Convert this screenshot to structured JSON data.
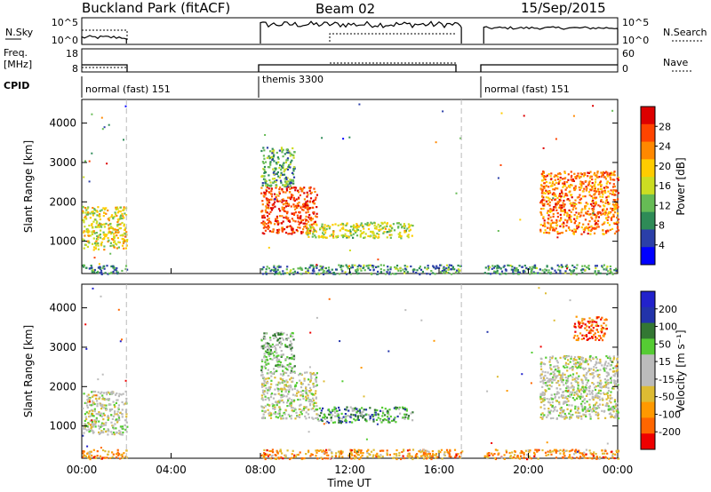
{
  "header": {
    "station": "Buckland Park (fitACF)",
    "beam": "Beam 02",
    "date": "15/Sep/2015"
  },
  "strips": {
    "nsky": {
      "label": "N.Sky",
      "yticks_left": [
        "10^5",
        "10^0"
      ],
      "right_label": "N.Search",
      "yticks_right": [
        "10^5",
        "10^0"
      ]
    },
    "freq": {
      "label_line1": "Freq.",
      "label_line2": "[MHz]",
      "yticks_left": [
        "18",
        "8"
      ],
      "right_label": "Nave",
      "yticks_right": [
        "60",
        "0"
      ]
    },
    "cpid": {
      "label": "CPID",
      "modes": [
        {
          "name": "normal (fast) 151",
          "start_h": 0.0,
          "end_h": 2.0
        },
        {
          "name": "themis 3300",
          "start_h": 8.0,
          "end_h": 17.0
        },
        {
          "name": "normal (fast) 151",
          "start_h": 18.0,
          "end_h": 24.0
        }
      ]
    }
  },
  "colors": {
    "power_scale": [
      "#0000ff",
      "#2b3fa8",
      "#2e8b57",
      "#66bb55",
      "#ccdd22",
      "#ffcc00",
      "#ff8800",
      "#ff4400",
      "#dd0000"
    ],
    "velocity_scale": [
      "#ee0000",
      "#ff6600",
      "#ff9900",
      "#ddbb33",
      "#bbbbbb",
      "#bbbbbb",
      "#55cc33",
      "#337733",
      "#2233aa",
      "#2222cc"
    ]
  },
  "chart_data": [
    {
      "type": "heatmap",
      "panel": "power",
      "xlabel": "",
      "ylabel": "Slant Range [km]",
      "xlim_hours": [
        0,
        24
      ],
      "ylim_km": [
        180,
        4600
      ],
      "yticks": [
        "1000",
        "2000",
        "3000",
        "4000"
      ],
      "colorbar_label": "Power [dB]",
      "colorbar_ticks": [
        "4",
        "8",
        "12",
        "16",
        "20",
        "24",
        "28"
      ],
      "regions": [
        {
          "t_start": 0.0,
          "t_end": 2.0,
          "r_low": 800,
          "r_high": 1900,
          "level": 0.55
        },
        {
          "t_start": 8.0,
          "t_end": 10.5,
          "r_low": 1200,
          "r_high": 2400,
          "level": 0.85
        },
        {
          "t_start": 8.0,
          "t_end": 9.5,
          "r_low": 2400,
          "r_high": 3400,
          "level": 0.35
        },
        {
          "t_start": 10.0,
          "t_end": 14.8,
          "r_low": 1100,
          "r_high": 1500,
          "level": 0.5
        },
        {
          "t_start": 20.5,
          "t_end": 24.0,
          "r_low": 1200,
          "r_high": 2800,
          "level": 0.75
        },
        {
          "t_start": 8.0,
          "t_end": 17.0,
          "r_low": 180,
          "r_high": 420,
          "level": 0.3
        },
        {
          "t_start": 18.0,
          "t_end": 24.0,
          "r_low": 180,
          "r_high": 420,
          "level": 0.3
        },
        {
          "t_start": 0.0,
          "t_end": 2.0,
          "r_low": 180,
          "r_high": 420,
          "level": 0.3
        }
      ]
    },
    {
      "type": "heatmap",
      "panel": "velocity",
      "xlabel": "Time UT",
      "ylabel": "Slant Range [km]",
      "xlim_hours": [
        0,
        24
      ],
      "ylim_km": [
        180,
        4600
      ],
      "yticks": [
        "1000",
        "2000",
        "3000",
        "4000"
      ],
      "xticks": [
        "00:00",
        "04:00",
        "08:00",
        "12:00",
        "16:00",
        "20:00",
        "00:00"
      ],
      "colorbar_label": "Velocity [m s⁻¹]",
      "colorbar_ticks": [
        "200",
        "100",
        "50",
        "15",
        "-15",
        "-50",
        "-100",
        "-200"
      ],
      "regions": [
        {
          "t_start": 0.0,
          "t_end": 2.0,
          "r_low": 800,
          "r_high": 1900,
          "level": 0.5
        },
        {
          "t_start": 8.0,
          "t_end": 10.5,
          "r_low": 1200,
          "r_high": 2400,
          "level": 0.5
        },
        {
          "t_start": 8.0,
          "t_end": 9.5,
          "r_low": 2400,
          "r_high": 3400,
          "level": 0.6
        },
        {
          "t_start": 10.5,
          "t_end": 14.8,
          "r_low": 1100,
          "r_high": 1500,
          "level": 0.7
        },
        {
          "t_start": 20.5,
          "t_end": 24.0,
          "r_low": 1200,
          "r_high": 2800,
          "level": 0.5
        },
        {
          "t_start": 22.0,
          "t_end": 23.5,
          "r_low": 3200,
          "r_high": 3800,
          "level": 0.15
        },
        {
          "t_start": 8.0,
          "t_end": 17.0,
          "r_low": 180,
          "r_high": 420,
          "level": 0.25
        },
        {
          "t_start": 18.0,
          "t_end": 24.0,
          "r_low": 180,
          "r_high": 420,
          "level": 0.25
        },
        {
          "t_start": 0.0,
          "t_end": 2.0,
          "r_low": 180,
          "r_high": 420,
          "level": 0.25
        }
      ]
    }
  ]
}
